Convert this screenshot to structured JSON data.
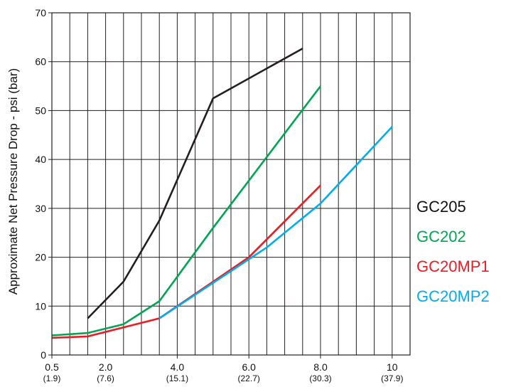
{
  "chart_data": {
    "type": "line",
    "title": "",
    "xlabel": "",
    "ylabel": "Approximate Net Pressure Drop - psi (bar)",
    "ylim": [
      0,
      70
    ],
    "yticks": [
      "0",
      "10",
      "20",
      "30",
      "40",
      "50",
      "60",
      "70"
    ],
    "xtick_labels": [
      {
        "main": "0.5",
        "sub": "(1.9)"
      },
      {
        "main": "2.0",
        "sub": "(7.6)"
      },
      {
        "main": "4.0",
        "sub": "(15.1)"
      },
      {
        "main": "6.0",
        "sub": "(22.7)"
      },
      {
        "main": "8.0",
        "sub": "(30.3)"
      },
      {
        "main": "10",
        "sub": "(37.9)"
      }
    ],
    "xtick_values": [
      0.5,
      2.0,
      4.0,
      6.0,
      8.0,
      10
    ],
    "xlim": [
      0.5,
      10.5
    ],
    "grid": true,
    "legend_position": "right",
    "series": [
      {
        "name": "GC205",
        "color": "#231f20",
        "x": [
          1.5,
          2.5,
          3.5,
          5.0,
          7.5
        ],
        "y": [
          7.5,
          15,
          27.5,
          52.5,
          62.7
        ]
      },
      {
        "name": "GC202",
        "color": "#00a651",
        "x": [
          0.5,
          1.5,
          2.5,
          3.5,
          5.0,
          8.0
        ],
        "y": [
          4,
          4.5,
          6.3,
          11,
          26,
          55
        ]
      },
      {
        "name": "GC20MP1",
        "color": "#ed1c24",
        "x": [
          0.5,
          1.5,
          3.5,
          6.0,
          8.0
        ],
        "y": [
          3.5,
          3.8,
          7.5,
          20,
          34.7
        ]
      },
      {
        "name": "GC20MP2",
        "color": "#00aeef",
        "x": [
          3.5,
          6.5,
          8.0,
          10.0
        ],
        "y": [
          7.5,
          22,
          31,
          46.7
        ]
      }
    ]
  }
}
